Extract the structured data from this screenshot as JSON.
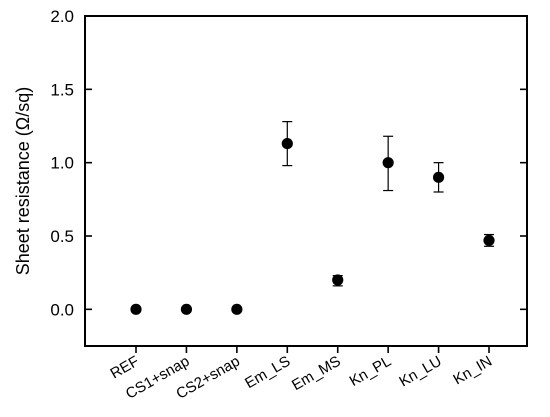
{
  "chart_data": {
    "type": "scatter",
    "categories": [
      "REF",
      "CS1+snap",
      "CS2+snap",
      "Em_LS",
      "Em_MS",
      "Kn_PL",
      "Kn_LU",
      "Kn_IN"
    ],
    "values": [
      0.0,
      0.0,
      0.0,
      1.13,
      0.2,
      1.0,
      0.9,
      0.47
    ],
    "error_low": [
      0.0,
      0.0,
      0.0,
      0.98,
      0.16,
      0.81,
      0.8,
      0.43
    ],
    "error_high": [
      0.0,
      0.0,
      0.0,
      1.28,
      0.23,
      1.18,
      1.0,
      0.51
    ],
    "ylabel": "Sheet resistance (Ω/sq)",
    "xlabel": "",
    "ylim": [
      -0.25,
      2.0
    ],
    "yticks": [
      0.0,
      0.5,
      1.0,
      1.5,
      2.0
    ],
    "ytick_labels": [
      "0.0",
      "0.5",
      "1.0",
      "1.5",
      "2.0"
    ],
    "grid": false,
    "marker_color": "#000000"
  }
}
